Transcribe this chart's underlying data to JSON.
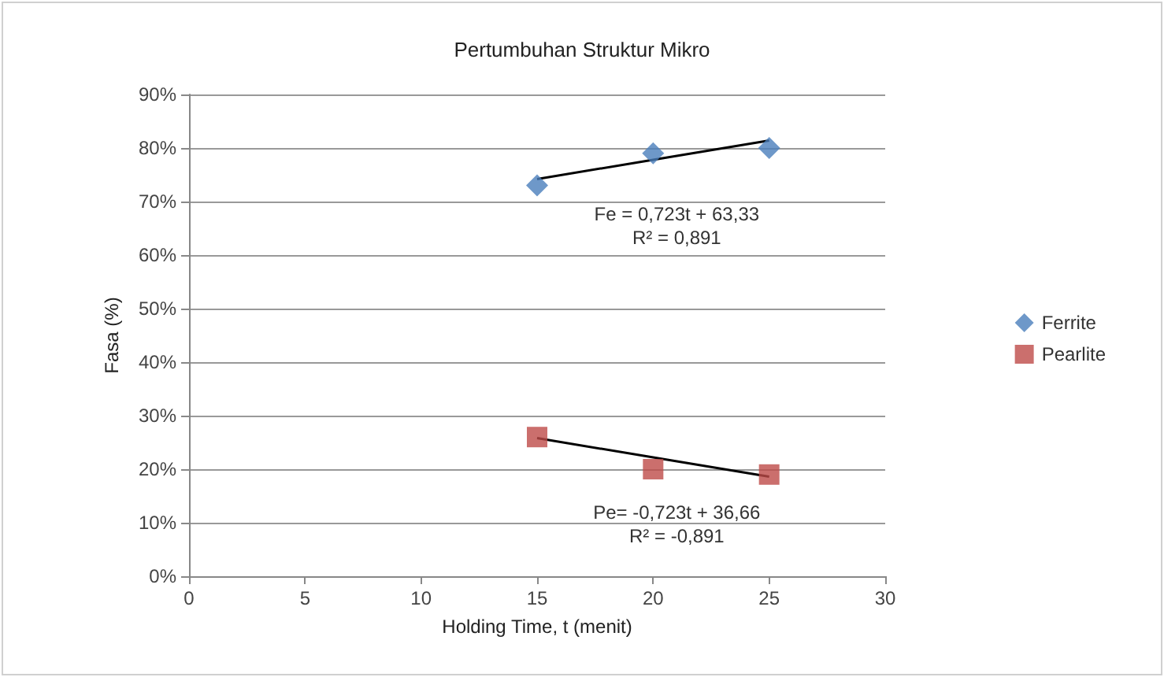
{
  "chart_data": {
    "type": "scatter",
    "title": "Pertumbuhan Struktur Mikro",
    "xlabel": "Holding Time, t (menit)",
    "ylabel": "Fasa (%)",
    "x": [
      15,
      20,
      25
    ],
    "series": [
      {
        "name": "Ferrite",
        "color": "#4a7ebb",
        "marker": "diamond",
        "values": [
          73,
          79,
          80
        ]
      },
      {
        "name": "Pearlite",
        "color": "#be4b48",
        "marker": "square",
        "values": [
          26,
          20,
          19
        ]
      },
      {
        "type": "line",
        "color": "#000000",
        "marker": "none",
        "values": [
          74.2,
          77.8,
          81.4
        ]
      },
      {
        "type": "line",
        "color": "#000000",
        "marker": "none",
        "values": [
          25.8,
          22.2,
          18.6
        ]
      }
    ],
    "xlim": [
      0,
      30
    ],
    "xticks": [
      0,
      5,
      10,
      15,
      20,
      25,
      30
    ],
    "ylim": [
      0,
      90
    ],
    "yticks": [
      {
        "value": 0,
        "label": "0%"
      },
      {
        "value": 10,
        "label": "10%"
      },
      {
        "value": 20,
        "label": "20%"
      },
      {
        "value": 30,
        "label": "30%"
      },
      {
        "value": 40,
        "label": "40%"
      },
      {
        "value": 50,
        "label": "50%"
      },
      {
        "value": 60,
        "label": "60%"
      },
      {
        "value": 70,
        "label": "70%"
      },
      {
        "value": 80,
        "label": "80%"
      },
      {
        "value": 90,
        "label": "90%"
      }
    ],
    "grid": "y",
    "legend": "right",
    "annotations": [
      "Fe = 0,723t + 63,33\nR² = 0,891",
      "Pe= -0,723t + 36,66\nR² = -0,891"
    ]
  }
}
